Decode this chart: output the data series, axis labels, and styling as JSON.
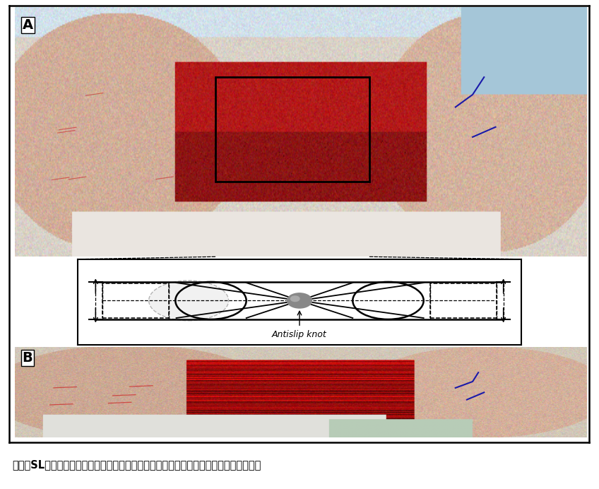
{
  "figure_width": 8.48,
  "figure_height": 6.92,
  "dpi": 100,
  "background_color": "#ffffff",
  "label_A": "A",
  "label_B": "B",
  "caption": "図２：SL法によるアキレス腱縫合．Ａ）縫合直後．Ｂ）線維を整え，辺縁縫合を施行．",
  "caption_fontsize": 10.5,
  "antislip_label": "Antislip knot"
}
